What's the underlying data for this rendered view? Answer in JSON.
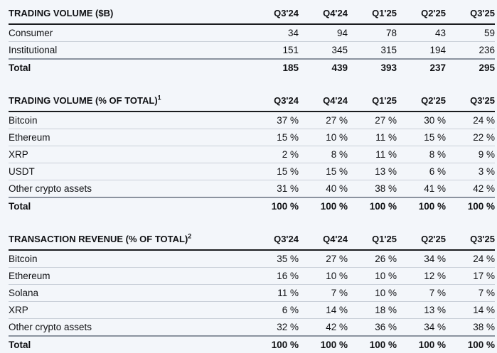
{
  "page": {
    "background_color": "#f3f6fa",
    "text_color": "#101114",
    "header_rule_color": "#1b1c1f",
    "row_separator_color": "#cad0d9",
    "total_rule_color": "#8b939f"
  },
  "columns": [
    "Q3'24",
    "Q4'24",
    "Q1'25",
    "Q2'25",
    "Q3'25"
  ],
  "tables": [
    {
      "title": "TRADING VOLUME ($B)",
      "superscript": "",
      "rows": [
        {
          "label": "Consumer",
          "bold": false,
          "values": [
            "34",
            "94",
            "78",
            "43",
            "59"
          ]
        },
        {
          "label": "Institutional",
          "bold": false,
          "values": [
            "151",
            "345",
            "315",
            "194",
            "236"
          ]
        },
        {
          "label": "Total",
          "bold": true,
          "values": [
            "185",
            "439",
            "393",
            "237",
            "295"
          ]
        }
      ]
    },
    {
      "title": "TRADING VOLUME (% OF TOTAL)",
      "superscript": "1",
      "rows": [
        {
          "label": "Bitcoin",
          "bold": false,
          "values": [
            "37 %",
            "27 %",
            "27 %",
            "30 %",
            "24 %"
          ]
        },
        {
          "label": "Ethereum",
          "bold": false,
          "values": [
            "15 %",
            "10 %",
            "11 %",
            "15 %",
            "22 %"
          ]
        },
        {
          "label": "XRP",
          "bold": false,
          "values": [
            "2 %",
            "8 %",
            "11 %",
            "8 %",
            "9 %"
          ]
        },
        {
          "label": "USDT",
          "bold": false,
          "values": [
            "15 %",
            "15 %",
            "13 %",
            "6 %",
            "3 %"
          ]
        },
        {
          "label": "Other crypto assets",
          "bold": false,
          "values": [
            "31 %",
            "40 %",
            "38 %",
            "41 %",
            "42 %"
          ]
        },
        {
          "label": "Total",
          "bold": true,
          "values": [
            "100 %",
            "100 %",
            "100 %",
            "100 %",
            "100 %"
          ]
        }
      ]
    },
    {
      "title": "TRANSACTION REVENUE (% OF TOTAL)",
      "superscript": "2",
      "rows": [
        {
          "label": "Bitcoin",
          "bold": false,
          "values": [
            "35 %",
            "27 %",
            "26 %",
            "34 %",
            "24 %"
          ]
        },
        {
          "label": "Ethereum",
          "bold": false,
          "values": [
            "16 %",
            "10 %",
            "10 %",
            "12 %",
            "17 %"
          ]
        },
        {
          "label": "Solana",
          "bold": false,
          "values": [
            "11 %",
            "7 %",
            "10 %",
            "7 %",
            "7 %"
          ]
        },
        {
          "label": "XRP",
          "bold": false,
          "values": [
            "6 %",
            "14 %",
            "18 %",
            "13 %",
            "14 %"
          ]
        },
        {
          "label": "Other crypto assets",
          "bold": false,
          "values": [
            "32 %",
            "42 %",
            "36 %",
            "34 %",
            "38 %"
          ]
        },
        {
          "label": "Total",
          "bold": true,
          "values": [
            "100 %",
            "100 %",
            "100 %",
            "100 %",
            "100 %"
          ]
        }
      ]
    }
  ]
}
